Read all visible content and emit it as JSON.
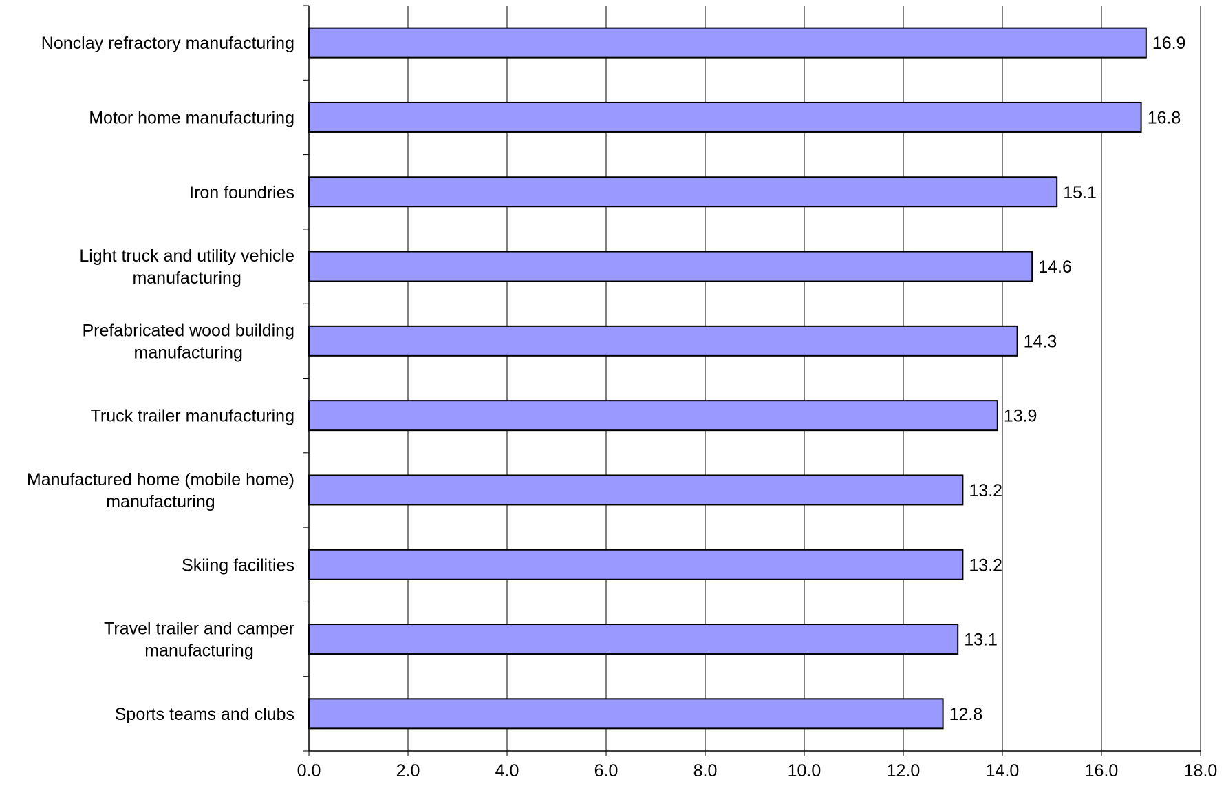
{
  "chart_data": {
    "type": "bar",
    "orientation": "horizontal",
    "categories": [
      "Nonclay refractory manufacturing",
      "Motor home manufacturing",
      "Iron foundries",
      "Light truck and utility vehicle manufacturing",
      "Prefabricated wood building manufacturing",
      "Truck trailer manufacturing",
      "Manufactured home (mobile home) manufacturing",
      "Skiing facilities",
      "Travel trailer and camper manufacturing",
      "Sports teams and clubs"
    ],
    "category_lines": [
      [
        "Nonclay refractory manufacturing"
      ],
      [
        "Motor home manufacturing"
      ],
      [
        "Iron foundries"
      ],
      [
        "Light truck and utility vehicle",
        "manufacturing"
      ],
      [
        "Prefabricated wood building",
        "manufacturing"
      ],
      [
        "Truck trailer manufacturing"
      ],
      [
        "Manufactured home (mobile home)",
        "manufacturing"
      ],
      [
        "Skiing facilities"
      ],
      [
        "Travel trailer and camper",
        "manufacturing"
      ],
      [
        "Sports teams and clubs"
      ]
    ],
    "values": [
      16.9,
      16.8,
      15.1,
      14.6,
      14.3,
      13.9,
      13.2,
      13.2,
      13.1,
      12.8
    ],
    "data_labels": [
      "16.9",
      "16.8",
      "15.1",
      "14.6",
      "14.3",
      "13.9",
      "13.2",
      "13.2",
      "13.1",
      "12.8"
    ],
    "xlim": [
      0,
      18
    ],
    "x_ticks": [
      0,
      2,
      4,
      6,
      8,
      10,
      12,
      14,
      16,
      18
    ],
    "x_tick_labels": [
      "0.0",
      "2.0",
      "4.0",
      "6.0",
      "8.0",
      "10.0",
      "12.0",
      "14.0",
      "16.0",
      "18.0"
    ],
    "grid": "vertical",
    "legend": "none",
    "title": "",
    "xlabel": "",
    "ylabel": "",
    "colors": {
      "bar_fill": "#9999FF",
      "bar_stroke": "#000000",
      "grid": "#000000",
      "background": "#FFFFFF"
    }
  }
}
